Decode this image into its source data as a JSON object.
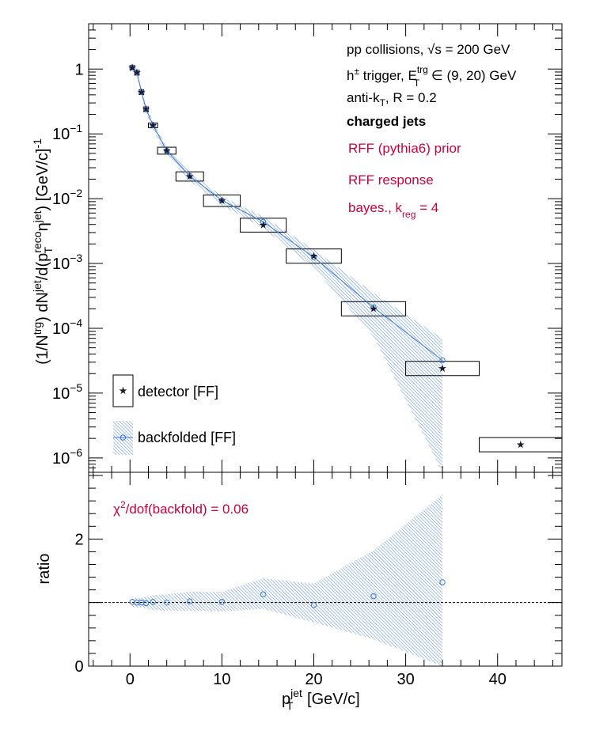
{
  "chart_data": [
    {
      "type": "scatter",
      "panel": "spectrum",
      "ylabel_parts": {
        "a": "(1/N",
        "trg_sup": "trg",
        "b": ") dN",
        "jet_sup": "jet",
        "c": "/d(p",
        "reco_sup": "reco",
        "T_sub": "T",
        "d": " η",
        "jet2_sup": "jet",
        "e": ") [GeV/c]",
        "m1_sup": "-1"
      },
      "y_scale": "log",
      "ylim": [
        6e-07,
        5
      ],
      "xlim": [
        -4.5,
        47
      ],
      "y_ticks": [
        {
          "v": 1,
          "label": "1",
          "exp": ""
        },
        {
          "v": 0.1,
          "label": "10",
          "exp": "−1"
        },
        {
          "v": 0.01,
          "label": "10",
          "exp": "−2"
        },
        {
          "v": 0.001,
          "label": "10",
          "exp": "−3"
        },
        {
          "v": 0.0001,
          "label": "10",
          "exp": "−4"
        },
        {
          "v": 1e-05,
          "label": "10",
          "exp": "−5"
        },
        {
          "v": 1e-06,
          "label": "10",
          "exp": "−6"
        }
      ],
      "annotations": {
        "line1": "pp collisions, √s = 200 GeV",
        "line2_a": "h",
        "line2_pm": "±",
        "line2_b": " trigger, E",
        "line2_trg": "trg",
        "line2_T": "T",
        "line2_c": " ∈ (9, 20) GeV",
        "line3_a": "anti-k",
        "line3_T": "T",
        "line3_b": ", R = 0.2",
        "line4": "charged jets",
        "line5": "RFF (pythia6) prior",
        "line6": "RFF response",
        "line7_a": "bayes., k",
        "line7_sub": "reg",
        "line7_b": " = 4"
      },
      "legend": {
        "placement": "bottom-left",
        "detector": "detector [FF]",
        "backfolded": "backfolded [FF]"
      },
      "series": [
        {
          "name": "detector [FF]",
          "marker": "star",
          "points": [
            {
              "x": 0.25,
              "y": 1.05,
              "xlo": 0.0,
              "xhi": 0.5
            },
            {
              "x": 0.75,
              "y": 0.88,
              "xlo": 0.5,
              "xhi": 1.0
            },
            {
              "x": 1.25,
              "y": 0.44,
              "xlo": 1.0,
              "xhi": 1.5
            },
            {
              "x": 1.75,
              "y": 0.24,
              "xlo": 1.5,
              "xhi": 2.0
            },
            {
              "x": 2.5,
              "y": 0.135,
              "xlo": 2.0,
              "xhi": 3.0
            },
            {
              "x": 4.0,
              "y": 0.055,
              "xlo": 3.0,
              "xhi": 5.0
            },
            {
              "x": 6.5,
              "y": 0.022,
              "xlo": 5.0,
              "xhi": 8.0
            },
            {
              "x": 10.0,
              "y": 0.0093,
              "xlo": 8.0,
              "xhi": 12.0
            },
            {
              "x": 14.5,
              "y": 0.0039,
              "xlo": 12.0,
              "xhi": 17.0
            },
            {
              "x": 20.0,
              "y": 0.0013,
              "xlo": 17.0,
              "xhi": 23.0
            },
            {
              "x": 26.5,
              "y": 0.0002,
              "xlo": 23.0,
              "xhi": 30.0
            },
            {
              "x": 34.0,
              "y": 2.4e-05,
              "xlo": 30.0,
              "xhi": 38.0
            },
            {
              "x": 42.5,
              "y": 1.6e-06,
              "xlo": 38.0,
              "xhi": 47.0
            }
          ]
        },
        {
          "name": "backfolded [FF]",
          "marker": "open-circle",
          "color": "#3a78d8",
          "points": [
            {
              "x": 0.25,
              "y": 1.06,
              "band_lo": 0.95,
              "band_hi": 1.17
            },
            {
              "x": 0.75,
              "y": 0.88,
              "band_lo": 0.79,
              "band_hi": 0.97
            },
            {
              "x": 1.25,
              "y": 0.44,
              "band_lo": 0.39,
              "band_hi": 0.49
            },
            {
              "x": 1.75,
              "y": 0.24,
              "band_lo": 0.21,
              "band_hi": 0.27
            },
            {
              "x": 2.5,
              "y": 0.136,
              "band_lo": 0.115,
              "band_hi": 0.157
            },
            {
              "x": 4.0,
              "y": 0.055,
              "band_lo": 0.047,
              "band_hi": 0.063
            },
            {
              "x": 6.5,
              "y": 0.0225,
              "band_lo": 0.019,
              "band_hi": 0.026
            },
            {
              "x": 10.0,
              "y": 0.0094,
              "band_lo": 0.0079,
              "band_hi": 0.0109
            },
            {
              "x": 14.5,
              "y": 0.0044,
              "band_lo": 0.0035,
              "band_hi": 0.0053
            },
            {
              "x": 20.0,
              "y": 0.00125,
              "band_lo": 0.00085,
              "band_hi": 0.00165
            },
            {
              "x": 26.5,
              "y": 0.00021,
              "band_lo": 7.5e-05,
              "band_hi": 0.00035
            },
            {
              "x": 34.0,
              "y": 3.2e-05,
              "band_lo": 6e-07,
              "band_hi": 7e-05
            }
          ]
        }
      ]
    },
    {
      "type": "scatter",
      "panel": "ratio",
      "ylabel": "ratio",
      "xlabel_parts": {
        "a": "p",
        "jet_sup": "jet",
        "T_sub": "T",
        "b": " [GeV/c]"
      },
      "ylim": [
        0,
        3.05
      ],
      "xlim": [
        -4.5,
        47
      ],
      "y_ticks": [
        0,
        2
      ],
      "x_ticks": [
        0,
        10,
        20,
        30,
        40
      ],
      "reference_line": 1,
      "annotation_a": "χ",
      "annotation_sup": "2",
      "annotation_b": "/dof(backfold) = 0.06",
      "series": [
        {
          "name": "backfolded / detector",
          "points": [
            {
              "x": 0.25,
              "y": 1.01,
              "band_lo": 0.93,
              "band_hi": 1.08
            },
            {
              "x": 0.75,
              "y": 1.0,
              "band_lo": 0.92,
              "band_hi": 1.07
            },
            {
              "x": 1.25,
              "y": 1.0,
              "band_lo": 0.92,
              "band_hi": 1.08
            },
            {
              "x": 1.75,
              "y": 0.99,
              "band_lo": 0.91,
              "band_hi": 1.08
            },
            {
              "x": 2.5,
              "y": 1.01,
              "band_lo": 0.88,
              "band_hi": 1.12
            },
            {
              "x": 4.0,
              "y": 1.0,
              "band_lo": 0.87,
              "band_hi": 1.13
            },
            {
              "x": 6.5,
              "y": 1.02,
              "band_lo": 0.87,
              "band_hi": 1.17
            },
            {
              "x": 10.0,
              "y": 1.01,
              "band_lo": 0.86,
              "band_hi": 1.17
            },
            {
              "x": 14.5,
              "y": 1.13,
              "band_lo": 0.9,
              "band_hi": 1.38
            },
            {
              "x": 20.0,
              "y": 0.96,
              "band_lo": 0.69,
              "band_hi": 1.3
            },
            {
              "x": 26.5,
              "y": 1.1,
              "band_lo": 0.42,
              "band_hi": 1.82
            },
            {
              "x": 34.0,
              "y": 1.32,
              "band_lo": 0.0,
              "band_hi": 2.7
            }
          ]
        }
      ]
    }
  ]
}
